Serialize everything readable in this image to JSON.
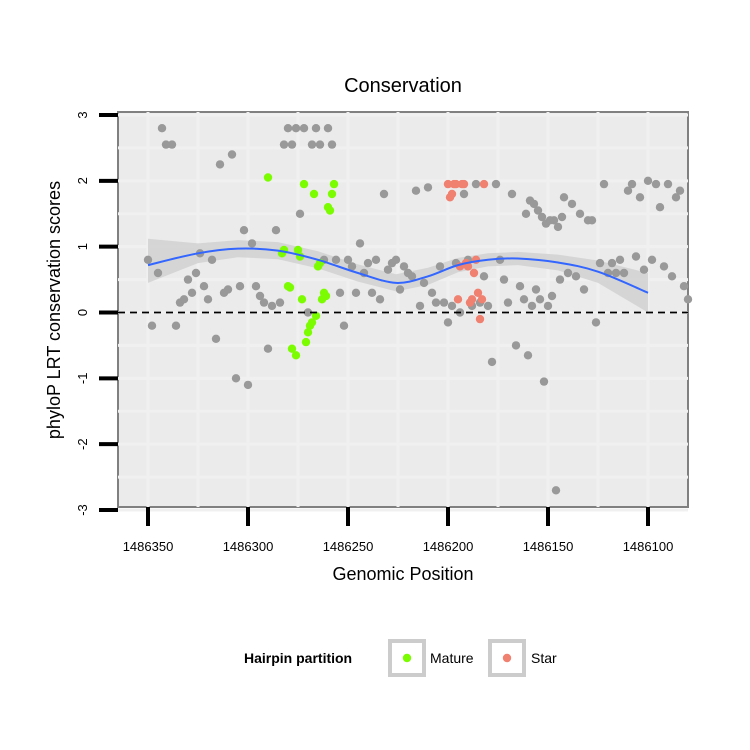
{
  "chart_data": {
    "type": "scatter",
    "title": "Conservation",
    "xlabel": "Genomic Position",
    "ylabel": "phyloP LRT conservation scores",
    "xlim": [
      1486365,
      1486080
    ],
    "ylim": [
      -3,
      3
    ],
    "x_reversed": true,
    "x_ticks": [
      1486350,
      1486300,
      1486250,
      1486200,
      1486150,
      1486100
    ],
    "x_tick_labels": [
      "1486350",
      "1486300",
      "1486250",
      "1486200",
      "1486150",
      "1486100"
    ],
    "y_ticks": [
      -3,
      -2,
      -1,
      0,
      1,
      2,
      3
    ],
    "y_tick_labels": [
      "-3",
      "-2",
      "-1",
      "0",
      "1",
      "2",
      "3"
    ],
    "reference_line": {
      "y": 0,
      "style": "dashed"
    },
    "legend": {
      "title": "Hairpin partition",
      "position": "bottom",
      "entries": [
        {
          "label": "Mature",
          "color": "#7cfc00"
        },
        {
          "label": "Star",
          "color": "#f08070"
        }
      ]
    },
    "colors": {
      "background": "#ebebeb",
      "points": "#999999",
      "smooth_line": "#3366ff",
      "smooth_band": "#d3d3d3"
    },
    "smooth": {
      "x": [
        1486350,
        1486325,
        1486305,
        1486285,
        1486265,
        1486245,
        1486226,
        1486210,
        1486195,
        1486180,
        1486165,
        1486145,
        1486125,
        1486100
      ],
      "y": [
        0.72,
        0.9,
        0.97,
        0.94,
        0.8,
        0.6,
        0.45,
        0.55,
        0.72,
        0.8,
        0.82,
        0.76,
        0.62,
        0.3
      ],
      "lower": [
        0.45,
        0.75,
        0.84,
        0.81,
        0.67,
        0.47,
        0.32,
        0.42,
        0.61,
        0.7,
        0.72,
        0.64,
        0.45,
        0.0
      ],
      "upper": [
        1.12,
        1.05,
        1.1,
        1.07,
        0.93,
        0.73,
        0.58,
        0.68,
        0.83,
        0.9,
        0.92,
        0.88,
        0.79,
        0.6
      ]
    },
    "series": [
      {
        "name": "Other",
        "color": "#999999",
        "points": [
          [
            1486350,
            0.8
          ],
          [
            1486348,
            -0.2
          ],
          [
            1486345,
            0.6
          ],
          [
            1486343,
            2.8
          ],
          [
            1486341,
            2.55
          ],
          [
            1486338,
            2.55
          ],
          [
            1486336,
            -0.2
          ],
          [
            1486334,
            0.15
          ],
          [
            1486332,
            0.2
          ],
          [
            1486330,
            0.5
          ],
          [
            1486328,
            0.3
          ],
          [
            1486326,
            0.6
          ],
          [
            1486324,
            0.9
          ],
          [
            1486322,
            0.4
          ],
          [
            1486320,
            0.2
          ],
          [
            1486318,
            0.8
          ],
          [
            1486316,
            -0.4
          ],
          [
            1486314,
            2.25
          ],
          [
            1486312,
            0.3
          ],
          [
            1486310,
            0.35
          ],
          [
            1486308,
            2.4
          ],
          [
            1486306,
            -1.0
          ],
          [
            1486304,
            0.4
          ],
          [
            1486302,
            1.25
          ],
          [
            1486300,
            -1.1
          ],
          [
            1486298,
            1.05
          ],
          [
            1486296,
            0.4
          ],
          [
            1486294,
            0.25
          ],
          [
            1486292,
            0.15
          ],
          [
            1486290,
            -0.55
          ],
          [
            1486288,
            0.1
          ],
          [
            1486286,
            1.25
          ],
          [
            1486284,
            0.15
          ],
          [
            1486282,
            2.55
          ],
          [
            1486280,
            2.8
          ],
          [
            1486278,
            2.55
          ],
          [
            1486276,
            2.8
          ],
          [
            1486274,
            1.5
          ],
          [
            1486272,
            2.8
          ],
          [
            1486270,
            0.0
          ],
          [
            1486268,
            2.55
          ],
          [
            1486266,
            2.8
          ],
          [
            1486264,
            2.55
          ],
          [
            1486262,
            0.8
          ],
          [
            1486260,
            2.8
          ],
          [
            1486258,
            2.55
          ],
          [
            1486256,
            0.8
          ],
          [
            1486254,
            0.3
          ],
          [
            1486252,
            -0.2
          ],
          [
            1486250,
            0.8
          ],
          [
            1486248,
            0.7
          ],
          [
            1486246,
            0.3
          ],
          [
            1486244,
            1.05
          ],
          [
            1486242,
            0.6
          ],
          [
            1486240,
            0.75
          ],
          [
            1486238,
            0.3
          ],
          [
            1486236,
            0.8
          ],
          [
            1486234,
            0.2
          ],
          [
            1486232,
            1.8
          ],
          [
            1486230,
            0.65
          ],
          [
            1486228,
            0.75
          ],
          [
            1486226,
            0.8
          ],
          [
            1486224,
            0.35
          ],
          [
            1486222,
            0.7
          ],
          [
            1486220,
            0.6
          ],
          [
            1486218,
            0.55
          ],
          [
            1486216,
            1.85
          ],
          [
            1486214,
            0.1
          ],
          [
            1486212,
            0.45
          ],
          [
            1486210,
            1.9
          ],
          [
            1486208,
            0.3
          ],
          [
            1486206,
            0.15
          ],
          [
            1486204,
            0.7
          ],
          [
            1486202,
            0.15
          ],
          [
            1486200,
            -0.15
          ],
          [
            1486198,
            0.1
          ],
          [
            1486196,
            0.75
          ],
          [
            1486194,
            0.0
          ],
          [
            1486192,
            1.8
          ],
          [
            1486190,
            0.8
          ],
          [
            1486188,
            0.1
          ],
          [
            1486186,
            1.95
          ],
          [
            1486184,
            0.15
          ],
          [
            1486182,
            0.55
          ],
          [
            1486180,
            0.1
          ],
          [
            1486178,
            -0.75
          ],
          [
            1486176,
            1.95
          ],
          [
            1486174,
            0.8
          ],
          [
            1486172,
            0.5
          ],
          [
            1486170,
            0.15
          ],
          [
            1486168,
            1.8
          ],
          [
            1486166,
            -0.5
          ],
          [
            1486164,
            0.4
          ],
          [
            1486162,
            0.2
          ],
          [
            1486160,
            -0.65
          ],
          [
            1486158,
            0.1
          ],
          [
            1486156,
            0.35
          ],
          [
            1486154,
            0.2
          ],
          [
            1486152,
            -1.05
          ],
          [
            1486150,
            0.1
          ],
          [
            1486148,
            0.25
          ],
          [
            1486146,
            -2.7
          ],
          [
            1486144,
            0.5
          ],
          [
            1486142,
            1.75
          ],
          [
            1486140,
            0.6
          ],
          [
            1486138,
            1.65
          ],
          [
            1486136,
            0.55
          ],
          [
            1486134,
            1.5
          ],
          [
            1486132,
            0.35
          ],
          [
            1486130,
            1.4
          ],
          [
            1486128,
            1.4
          ],
          [
            1486126,
            -0.15
          ],
          [
            1486124,
            0.75
          ],
          [
            1486122,
            1.95
          ],
          [
            1486120,
            0.6
          ],
          [
            1486118,
            0.75
          ],
          [
            1486116,
            0.6
          ],
          [
            1486114,
            0.8
          ],
          [
            1486112,
            0.6
          ],
          [
            1486110,
            1.85
          ],
          [
            1486108,
            1.95
          ],
          [
            1486106,
            0.85
          ],
          [
            1486104,
            1.75
          ],
          [
            1486102,
            0.65
          ],
          [
            1486100,
            2.0
          ],
          [
            1486098,
            0.8
          ],
          [
            1486096,
            1.95
          ],
          [
            1486094,
            1.6
          ],
          [
            1486092,
            0.7
          ],
          [
            1486090,
            1.95
          ],
          [
            1486088,
            0.55
          ],
          [
            1486086,
            1.75
          ],
          [
            1486084,
            1.85
          ],
          [
            1486082,
            0.4
          ],
          [
            1486080,
            0.2
          ],
          [
            1486161,
            1.5
          ],
          [
            1486159,
            1.7
          ],
          [
            1486157,
            1.65
          ],
          [
            1486155,
            1.55
          ],
          [
            1486153,
            1.45
          ],
          [
            1486151,
            1.35
          ],
          [
            1486149,
            1.4
          ],
          [
            1486147,
            1.4
          ],
          [
            1486145,
            1.3
          ],
          [
            1486143,
            1.45
          ]
        ]
      },
      {
        "name": "Mature",
        "color": "#7cfc00",
        "points": [
          [
            1486290,
            2.05
          ],
          [
            1486283,
            0.9
          ],
          [
            1486282,
            0.95
          ],
          [
            1486280,
            0.4
          ],
          [
            1486279,
            0.38
          ],
          [
            1486278,
            -0.55
          ],
          [
            1486276,
            -0.65
          ],
          [
            1486275,
            0.95
          ],
          [
            1486274,
            0.85
          ],
          [
            1486273,
            0.2
          ],
          [
            1486272,
            1.95
          ],
          [
            1486271,
            -0.45
          ],
          [
            1486270,
            -0.3
          ],
          [
            1486269,
            -0.2
          ],
          [
            1486268,
            -0.15
          ],
          [
            1486267,
            1.8
          ],
          [
            1486266,
            -0.05
          ],
          [
            1486265,
            0.7
          ],
          [
            1486264,
            0.75
          ],
          [
            1486263,
            0.2
          ],
          [
            1486262,
            0.3
          ],
          [
            1486261,
            0.25
          ],
          [
            1486260,
            1.6
          ],
          [
            1486259,
            1.55
          ],
          [
            1486258,
            1.8
          ],
          [
            1486257,
            1.95
          ]
        ]
      },
      {
        "name": "Star",
        "color": "#f08070",
        "points": [
          [
            1486200,
            1.95
          ],
          [
            1486199,
            1.75
          ],
          [
            1486198,
            1.8
          ],
          [
            1486197,
            1.95
          ],
          [
            1486196,
            1.95
          ],
          [
            1486195,
            0.2
          ],
          [
            1486194,
            0.7
          ],
          [
            1486193,
            1.95
          ],
          [
            1486192,
            1.95
          ],
          [
            1486191,
            0.75
          ],
          [
            1486190,
            0.7
          ],
          [
            1486189,
            0.15
          ],
          [
            1486188,
            0.2
          ],
          [
            1486187,
            0.6
          ],
          [
            1486186,
            0.8
          ],
          [
            1486185,
            0.3
          ],
          [
            1486184,
            -0.1
          ],
          [
            1486183,
            0.2
          ],
          [
            1486182,
            1.95
          ]
        ]
      }
    ]
  }
}
